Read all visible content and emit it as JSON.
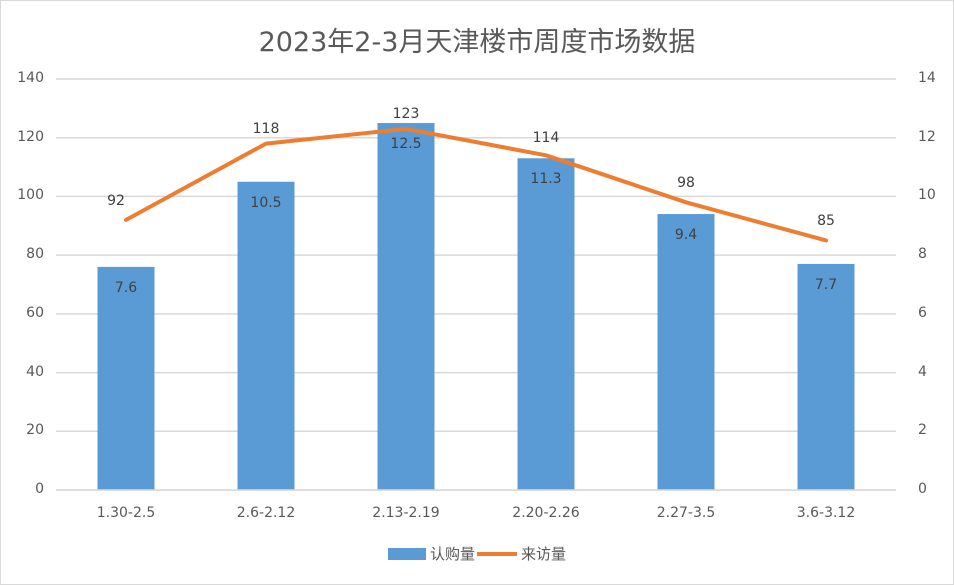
{
  "chart_data": {
    "type": "bar",
    "title": "2023年2-3月天津楼市周度市场数据",
    "categories": [
      "1.30-2.5",
      "2.6-2.12",
      "2.13-2.19",
      "2.20-2.26",
      "2.27-3.5",
      "3.6-3.12"
    ],
    "series": [
      {
        "name": "认购量",
        "type": "bar",
        "axis": "right",
        "color": "#5b9bd5",
        "values": [
          7.6,
          10.5,
          12.5,
          11.3,
          9.4,
          7.7
        ]
      },
      {
        "name": "来访量",
        "type": "line",
        "axis": "left",
        "color": "#ed7d31",
        "values": [
          92,
          118,
          123,
          114,
          98,
          85
        ]
      }
    ],
    "y_left": {
      "ylim": [
        0,
        140
      ],
      "ticks": [
        0,
        20,
        40,
        60,
        80,
        100,
        120,
        140
      ]
    },
    "y_right": {
      "ylim": [
        0,
        14
      ],
      "ticks": [
        0,
        2,
        4,
        6,
        8,
        10,
        12,
        14
      ]
    },
    "xlabel": "",
    "ylabel": "",
    "grid": true,
    "legend_position": "bottom"
  },
  "legend": {
    "bar_label": "认购量",
    "line_label": "来访量"
  }
}
